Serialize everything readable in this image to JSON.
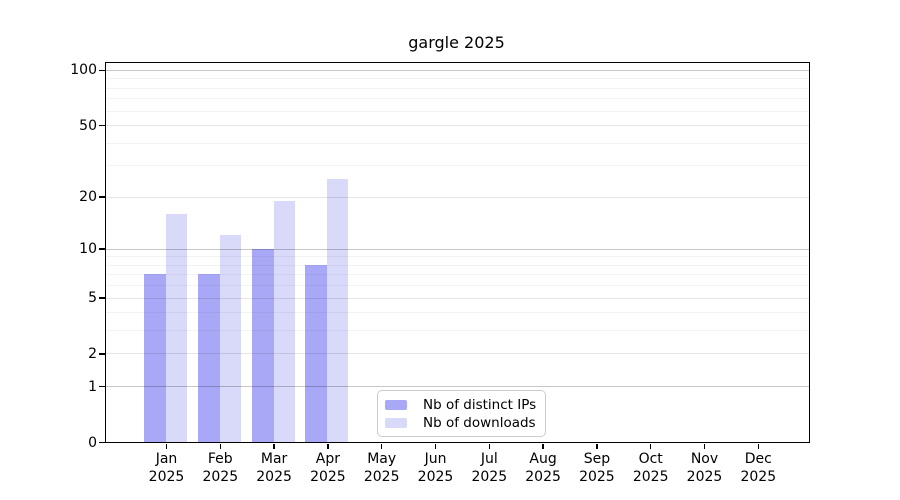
{
  "chart_data": {
    "type": "bar",
    "title": "gargle 2025",
    "categories": [
      "Jan",
      "Feb",
      "Mar",
      "Apr",
      "May",
      "Jun",
      "Jul",
      "Aug",
      "Sep",
      "Oct",
      "Nov",
      "Dec"
    ],
    "x_tick_sublabel": "2025",
    "series": [
      {
        "name": "Nb of distinct IPs",
        "color": "#a8a8f7",
        "values": [
          7,
          7,
          10,
          8,
          null,
          null,
          null,
          null,
          null,
          null,
          null,
          null
        ]
      },
      {
        "name": "Nb of downloads",
        "color": "#d9d9f9",
        "values": [
          16,
          12,
          19,
          25,
          null,
          null,
          null,
          null,
          null,
          null,
          null,
          null
        ]
      }
    ],
    "yaxis": {
      "scale": "log10(value+1)",
      "tick_values": [
        0,
        1,
        2,
        5,
        10,
        20,
        50,
        100
      ],
      "minor_gridline_values": [
        3,
        4,
        6,
        7,
        8,
        9,
        30,
        40,
        60,
        70,
        80,
        90
      ],
      "ylim_top": 110
    },
    "grid": "on",
    "legend_position": "inside-bottom-center",
    "axis_color": "#000000",
    "gridline_color_decade": "#c7c7c7",
    "gridline_color_major": "#e6e6e6",
    "gridline_color_minor": "#f3f3f3"
  }
}
